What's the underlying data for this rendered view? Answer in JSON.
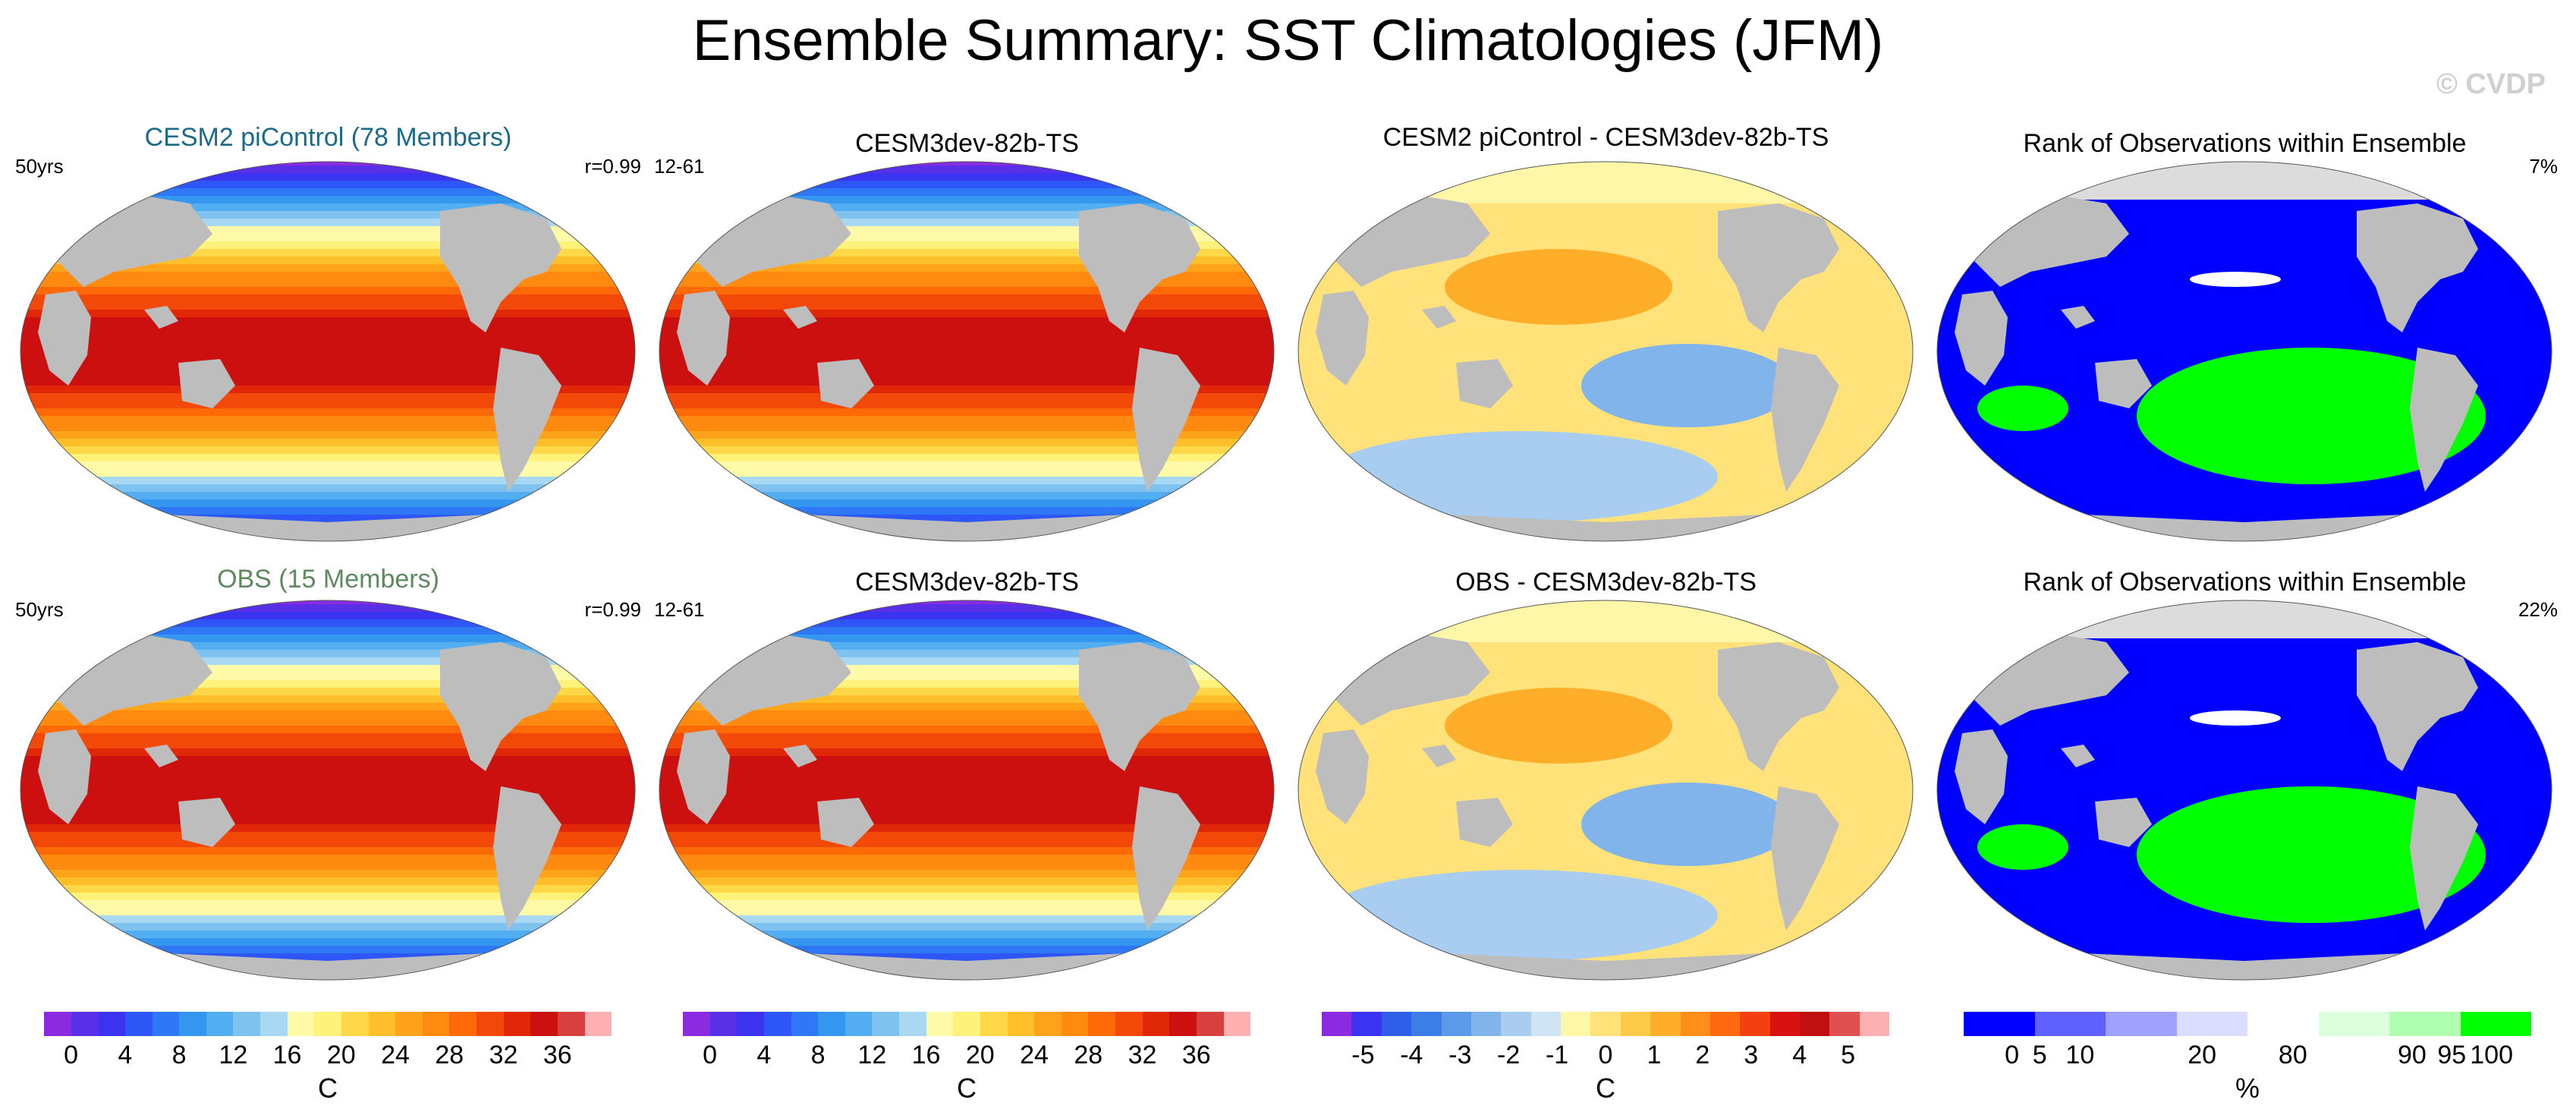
{
  "header": {
    "title": "Ensemble Summary: SST Climatologies (JFM)",
    "watermark": "© CVDP"
  },
  "colors": {
    "land": "#bdbdbd",
    "title_cesm2": "#1a6b8a",
    "title_obs": "#5f8a5f",
    "sst_palette": [
      "#8a2be2",
      "#5a2fe8",
      "#3a34f0",
      "#2e55f5",
      "#2f78f5",
      "#3596f0",
      "#52aef0",
      "#7ec3f0",
      "#a8d8f2",
      "#fffaa8",
      "#fff27a",
      "#ffd84a",
      "#ffbf2a",
      "#ffa31a",
      "#ff8a10",
      "#ff6a08",
      "#f24808",
      "#e02808",
      "#cc1010",
      "#d84040",
      "#ffb0b0"
    ],
    "diff_palette": [
      "#8a2be2",
      "#3a34f0",
      "#2f5ee8",
      "#3c7de8",
      "#5b9ae8",
      "#80b4ea",
      "#a8cdf0",
      "#cfe4f5",
      "#fff7a8",
      "#ffe27a",
      "#ffc94a",
      "#ffae2a",
      "#ff8e1a",
      "#ff6a10",
      "#f24010",
      "#d81010",
      "#c01010",
      "#e05050",
      "#ffb0b0"
    ],
    "rank_palette": [
      "#0000ff",
      "#6060ff",
      "#a0a0ff",
      "#dcdcff",
      "#ffffff",
      "#ddffdd",
      "#b0ffb0",
      "#00ff00"
    ]
  },
  "panels": [
    {
      "title": "CESM2 piControl (78 Members)",
      "left_label": "50yrs",
      "right_label": "r=0.99",
      "kind": "sst"
    },
    {
      "title": "CESM3dev-82b-TS",
      "left_label": "12-61",
      "right_label": "",
      "kind": "sst"
    },
    {
      "title": "CESM2 piControl - CESM3dev-82b-TS",
      "left_label": "",
      "right_label": "",
      "kind": "diff"
    },
    {
      "title": "Rank of Observations within Ensemble",
      "left_label": "",
      "right_label": "7%",
      "kind": "rank"
    },
    {
      "title": "OBS (15 Members)",
      "left_label": "50yrs",
      "right_label": "r=0.99",
      "kind": "sst"
    },
    {
      "title": "CESM3dev-82b-TS",
      "left_label": "12-61",
      "right_label": "",
      "kind": "sst"
    },
    {
      "title": "OBS - CESM3dev-82b-TS",
      "left_label": "",
      "right_label": "",
      "kind": "diff"
    },
    {
      "title": "Rank of Observations within Ensemble",
      "left_label": "",
      "right_label": "22%",
      "kind": "rank"
    }
  ],
  "chart_data": [
    {
      "type": "heatmap",
      "title": "Ensemble Summary: SST Climatologies (JFM)",
      "description_panels": [
        "CESM2 piControl (78 Members)",
        "CESM3dev-82b-TS",
        "OBS (15 Members)",
        "CESM3dev-82b-TS"
      ],
      "colorbar": {
        "unit": "C",
        "tick_labels": [
          "0",
          "4",
          "8",
          "12",
          "16",
          "20",
          "24",
          "28",
          "32",
          "36"
        ],
        "range": [
          -2,
          38
        ]
      }
    },
    {
      "type": "heatmap",
      "description_panels": [
        "CESM2 piControl - CESM3dev-82b-TS",
        "OBS - CESM3dev-82b-TS"
      ],
      "colorbar": {
        "unit": "C",
        "tick_labels": [
          "-5",
          "-4",
          "-3",
          "-2",
          "-1",
          "0",
          "1",
          "2",
          "3",
          "4",
          "5"
        ],
        "range": [
          -5.5,
          5.5
        ]
      }
    },
    {
      "type": "heatmap",
      "description_panels": [
        "Rank of Observations within Ensemble"
      ],
      "colorbar": {
        "unit": "%",
        "tick_labels": [
          "0",
          "5",
          "10",
          "20",
          "80",
          "90",
          "95",
          "100"
        ]
      }
    }
  ]
}
